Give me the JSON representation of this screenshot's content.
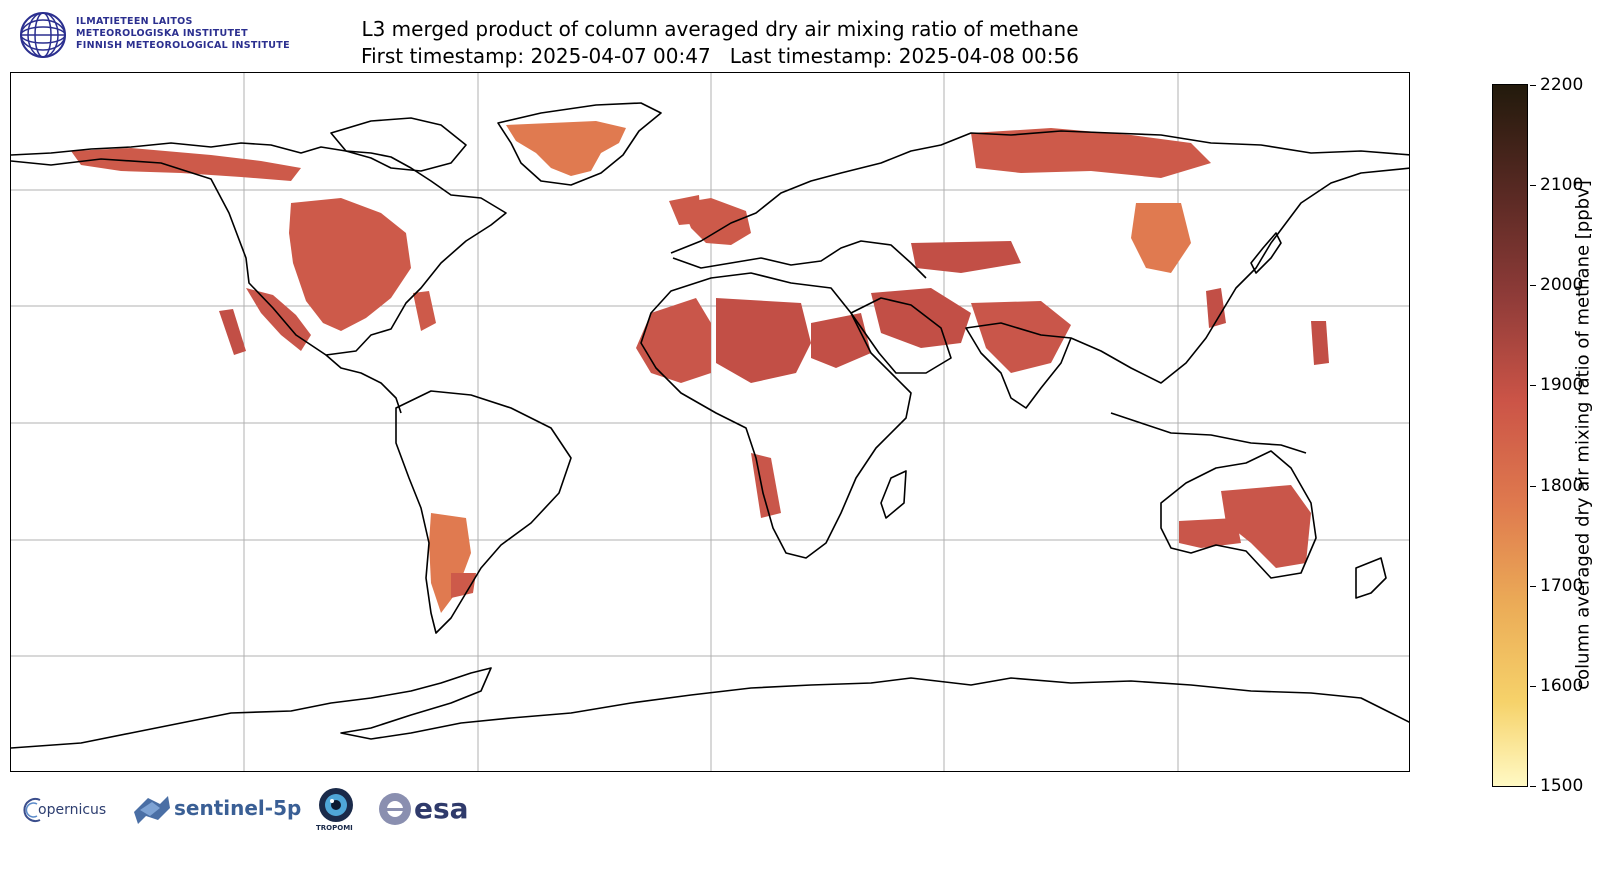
{
  "header": {
    "fmi_lines": [
      "ILMATIETEEN LAITOS",
      "METEOROLOGISKA INSTITUTET",
      "FINNISH METEOROLOGICAL INSTITUTE"
    ],
    "title_line1": "L3 merged product of column averaged dry air mixing ratio of methane",
    "title_line2": "First timestamp: 2025-04-07 00:47   Last timestamp: 2025-04-08 00:56"
  },
  "colorbar": {
    "label": "column averaged dry air mixing ratio of methane [ppbv]",
    "ticks": [
      "1500",
      "1600",
      "1700",
      "1800",
      "1900",
      "2000",
      "2100",
      "2200"
    ],
    "min": 1500,
    "max": 2200,
    "colors": [
      "#fff9c4",
      "#f6d26a",
      "#ebab57",
      "#df7a4e",
      "#cb5447",
      "#8e3b38",
      "#5b2a24",
      "#221a0c"
    ]
  },
  "map": {
    "projection": "plate carree",
    "gridlines": true,
    "data_color_main": "#cd5a4a",
    "data_color_greenland": "#e07a50"
  },
  "footer": {
    "logos": [
      {
        "name": "copernicus",
        "text": "opernicus"
      },
      {
        "name": "sentinel-5p",
        "text": "sentinel-5p"
      },
      {
        "name": "tropomi",
        "text": "TROPOMI"
      },
      {
        "name": "esa",
        "text": "esa"
      }
    ]
  }
}
